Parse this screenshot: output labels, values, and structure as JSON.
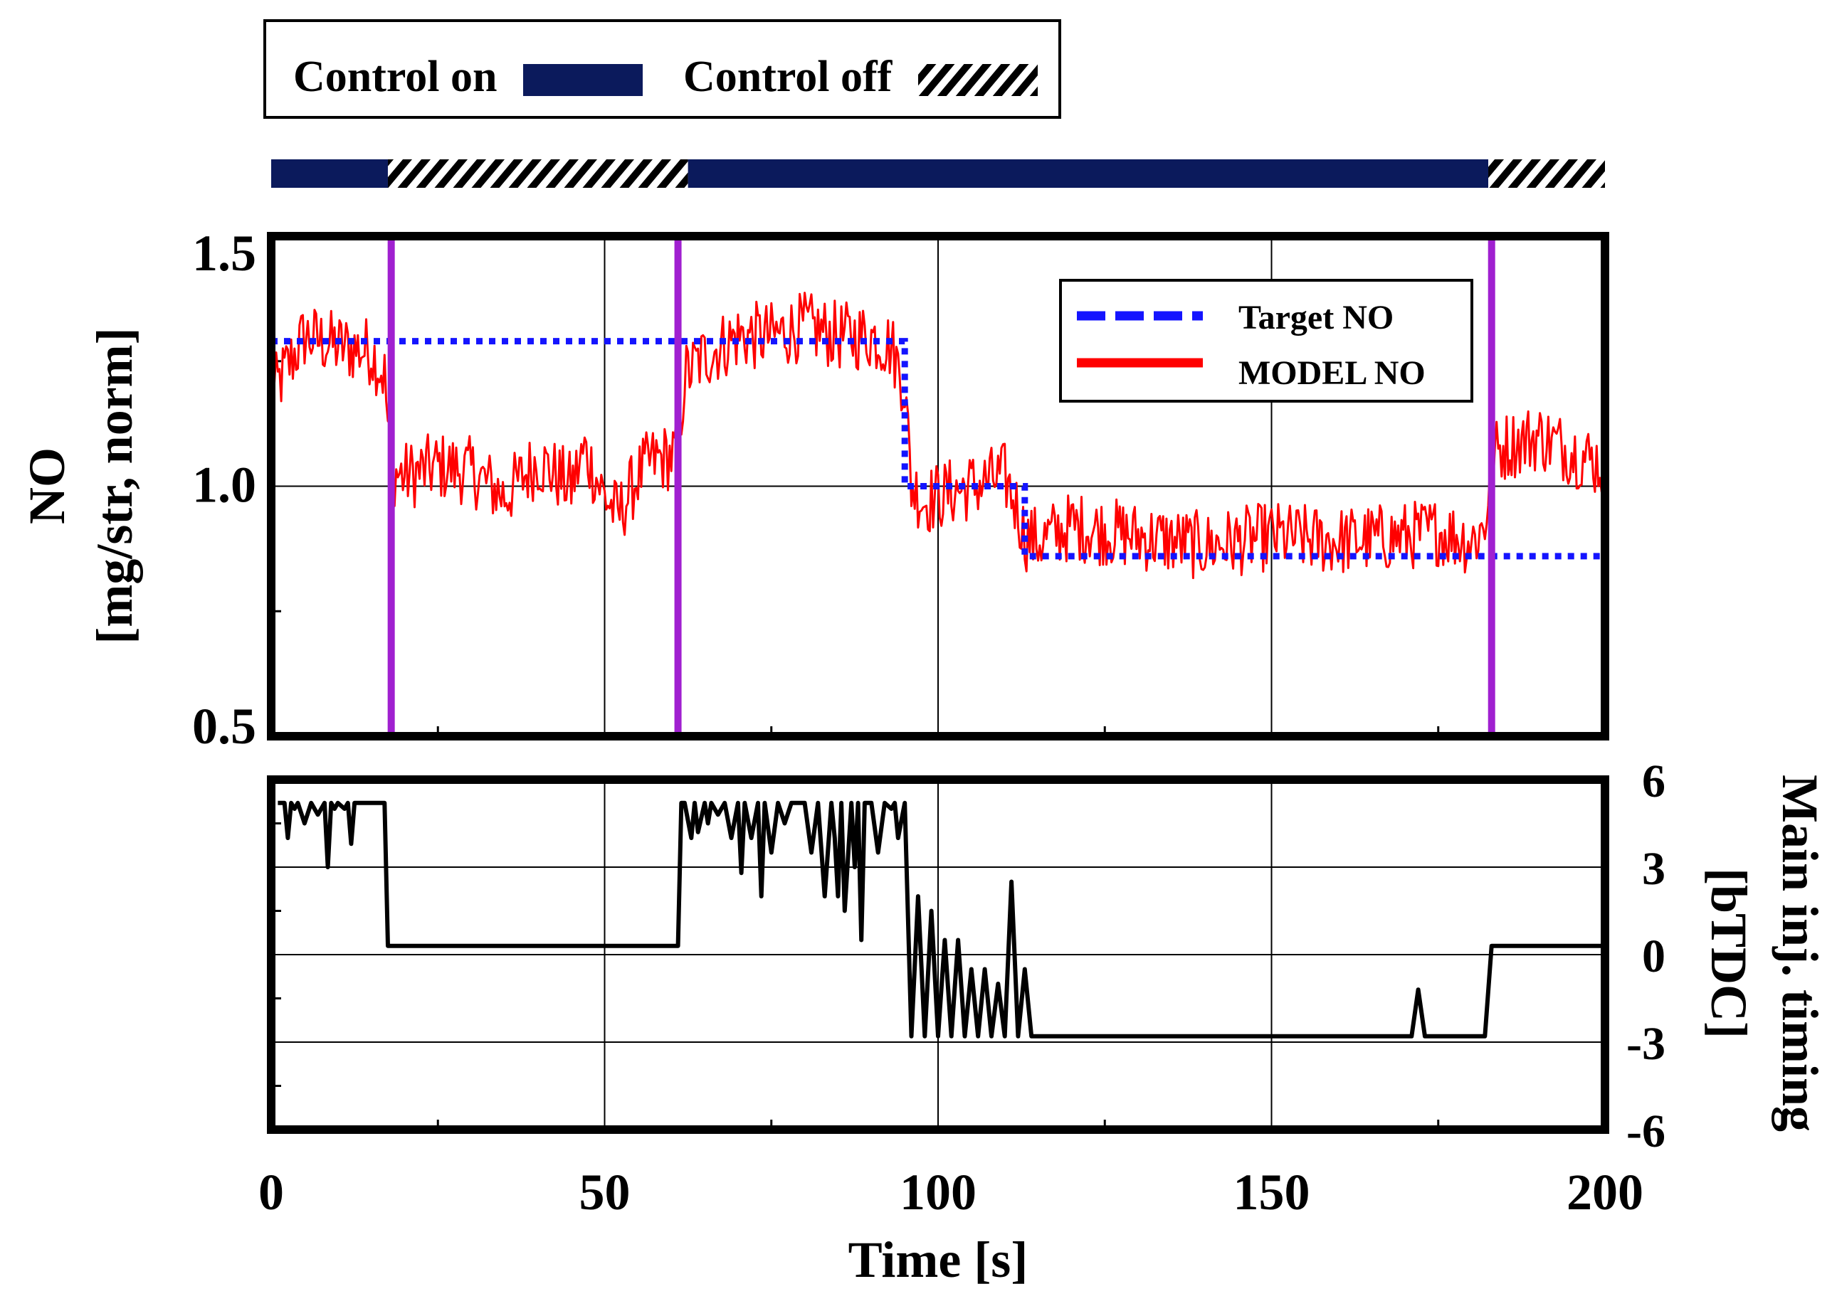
{
  "colors": {
    "control_bar": "#0b1a5c",
    "target": "#1414ff",
    "model": "#ff0000",
    "switch_line": "#a020d0",
    "timing": "#000000"
  },
  "legend_top": {
    "on_label": "Control on",
    "off_label": "Control off"
  },
  "control_segments": [
    {
      "start": 0,
      "end": 17.5,
      "state": "on"
    },
    {
      "start": 17.5,
      "end": 62.5,
      "state": "off"
    },
    {
      "start": 62.5,
      "end": 182.5,
      "state": "on"
    },
    {
      "start": 182.5,
      "end": 200,
      "state": "off"
    }
  ],
  "chart_data": [
    {
      "type": "line",
      "ylabel_line1": "NO",
      "ylabel_line2": "[mg/str, norm]",
      "ylim": [
        0.5,
        1.5
      ],
      "yticks": [
        "0.5",
        "1.0",
        "1.5"
      ],
      "ytick_values": [
        0.5,
        1.0,
        1.5
      ],
      "xlim": [
        0,
        200
      ],
      "grid": true,
      "legend": {
        "position": "top-right",
        "entries": [
          "Target NO",
          "MODEL NO"
        ]
      },
      "switch_times": [
        18,
        61,
        183
      ],
      "series": [
        {
          "name": "Target NO",
          "style": "dotted",
          "x": [
            0,
            95,
            95,
            113,
            113,
            200
          ],
          "y": [
            1.29,
            1.29,
            1.0,
            1.0,
            0.86,
            0.86
          ]
        },
        {
          "name": "MODEL NO",
          "style": "solid",
          "noise": 0.07,
          "x": [
            0,
            5,
            10,
            15,
            17,
            18,
            20,
            25,
            30,
            35,
            40,
            45,
            47,
            50,
            52,
            55,
            57,
            60,
            61,
            62,
            65,
            70,
            75,
            80,
            85,
            90,
            93,
            95,
            96,
            98,
            100,
            105,
            110,
            112,
            113,
            115,
            120,
            130,
            140,
            150,
            160,
            170,
            175,
            180,
            182,
            183,
            185,
            190,
            195,
            200
          ],
          "y": [
            1.18,
            1.3,
            1.28,
            1.27,
            1.22,
            1.03,
            1.02,
            1.04,
            1.03,
            0.98,
            1.05,
            1.0,
            1.07,
            0.98,
            0.94,
            1.02,
            1.05,
            1.06,
            1.07,
            1.22,
            1.26,
            1.3,
            1.3,
            1.32,
            1.3,
            1.3,
            1.28,
            1.2,
            1.0,
            0.97,
            0.98,
            1.0,
            1.02,
            0.95,
            0.9,
            0.89,
            0.92,
            0.9,
            0.88,
            0.9,
            0.89,
            0.9,
            0.91,
            0.89,
            0.92,
            1.06,
            1.08,
            1.1,
            1.07,
            1.04
          ]
        }
      ]
    },
    {
      "type": "line",
      "ylabel_line1": "Main inj. timing",
      "ylabel_line2": "[bTDC]",
      "ylim": [
        -6,
        6
      ],
      "yticks": [
        "-6",
        "-3",
        "0",
        "3",
        "6"
      ],
      "ytick_values": [
        -6,
        -3,
        0,
        3,
        6
      ],
      "xlim": [
        0,
        200
      ],
      "xlabel": "Time [s]",
      "xticks": [
        "0",
        "50",
        "100",
        "150",
        "200"
      ],
      "xtick_values": [
        0,
        50,
        100,
        150,
        200
      ],
      "grid": true,
      "series": [
        {
          "name": "Main inj. timing",
          "x": [
            1,
            2,
            2.5,
            3,
            3.5,
            4,
            5,
            6,
            7,
            8,
            8.5,
            9,
            9.5,
            10,
            11,
            11.5,
            12,
            12.5,
            13,
            14,
            17,
            17.5,
            18,
            61,
            61.5,
            62,
            63,
            63.5,
            64,
            65,
            65.5,
            66,
            67,
            68,
            69,
            70,
            70.5,
            71,
            72,
            73,
            73.5,
            74,
            75,
            76,
            77,
            78,
            79,
            80,
            81,
            82,
            83,
            84,
            84.5,
            85,
            85.5,
            86,
            87,
            87.5,
            88,
            88.5,
            89,
            90,
            91,
            92,
            93,
            93.5,
            94,
            95,
            96,
            97,
            98,
            99,
            100,
            101,
            102,
            103,
            104,
            105,
            106,
            107,
            108,
            109,
            110,
            111,
            112,
            113,
            114,
            170,
            171,
            172,
            173,
            182,
            183,
            200
          ],
          "y": [
            5.2,
            5.2,
            4.0,
            5.2,
            5.0,
            5.2,
            4.5,
            5.2,
            4.8,
            5.2,
            3.0,
            5.2,
            5.0,
            5.2,
            5.0,
            5.2,
            3.8,
            5.2,
            5.2,
            5.2,
            5.2,
            0.3,
            0.3,
            0.3,
            5.2,
            5.2,
            4.0,
            5.2,
            4.2,
            5.2,
            4.5,
            5.2,
            4.8,
            5.2,
            4.0,
            5.2,
            2.8,
            5.2,
            4.0,
            5.2,
            2.0,
            5.2,
            3.5,
            5.2,
            4.5,
            5.2,
            5.2,
            5.2,
            3.5,
            5.2,
            2.0,
            5.2,
            4.0,
            2.0,
            5.2,
            1.5,
            5.2,
            3.0,
            5.2,
            0.5,
            5.2,
            5.2,
            3.5,
            5.2,
            5.0,
            5.2,
            4.0,
            5.2,
            -2.8,
            2.0,
            -2.8,
            1.5,
            -2.8,
            0.5,
            -2.8,
            0.5,
            -2.8,
            -0.5,
            -2.8,
            -0.5,
            -2.8,
            -1.0,
            -2.8,
            2.5,
            -2.8,
            -0.5,
            -2.8,
            -2.8,
            -2.8,
            -1.2,
            -2.8,
            -2.8,
            0.3,
            0.3
          ]
        }
      ]
    }
  ]
}
